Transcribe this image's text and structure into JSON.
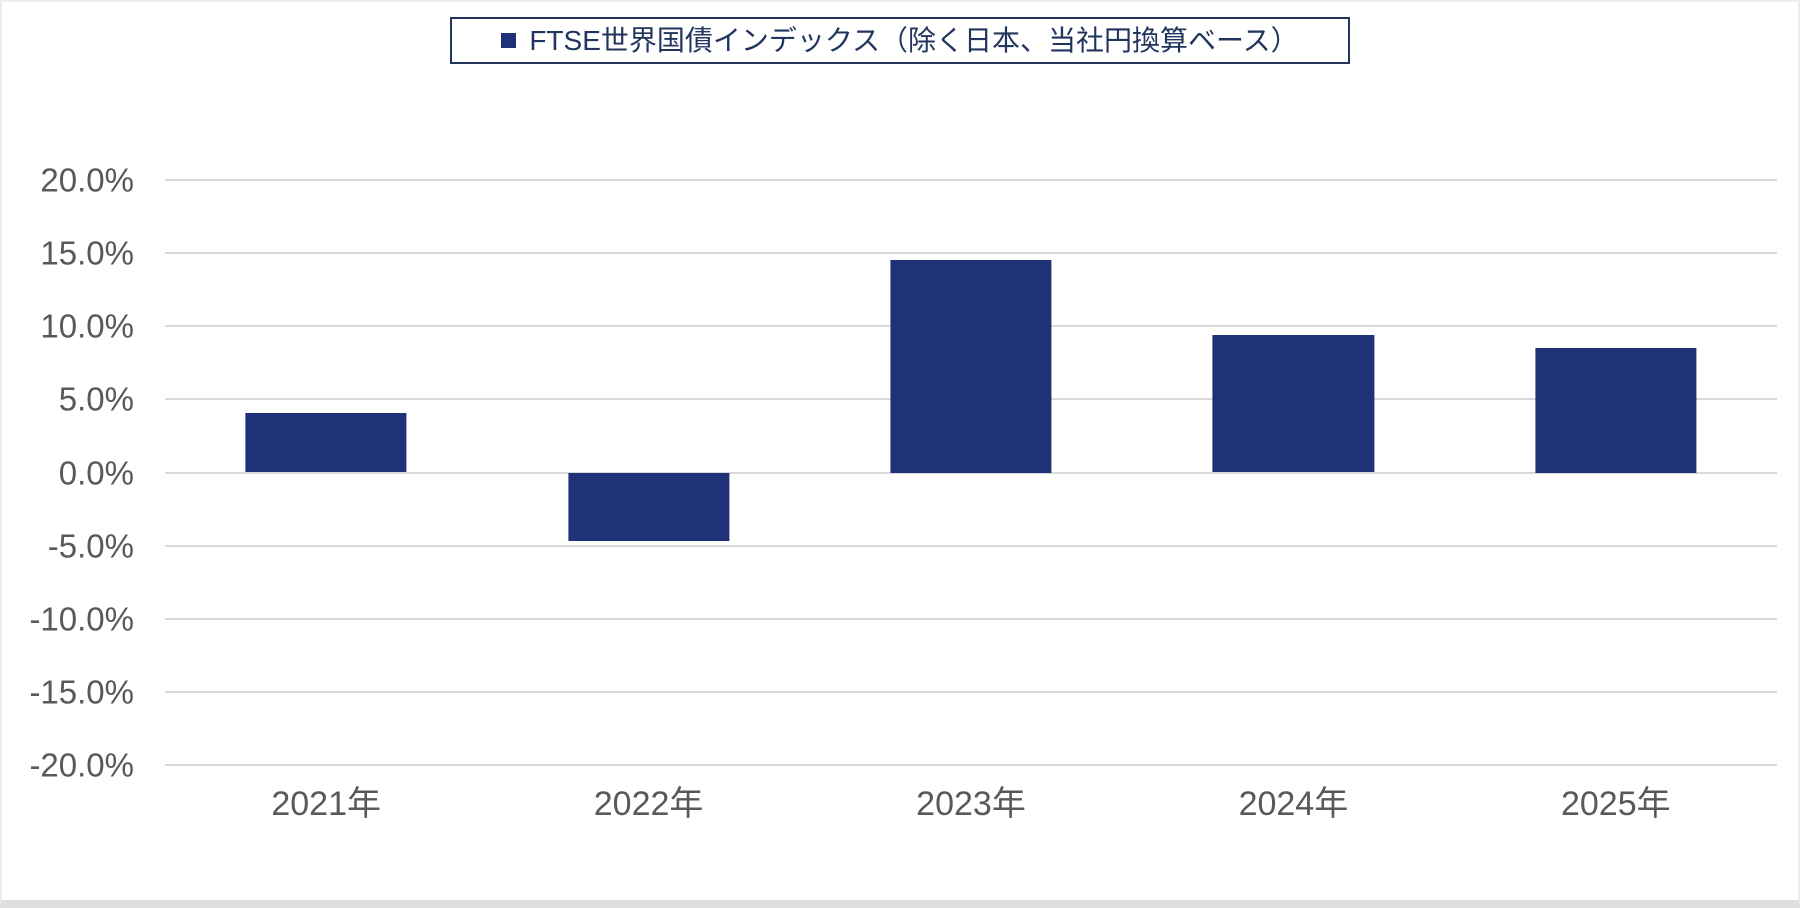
{
  "legend": {
    "label": "FTSE世界国債インデックス（除く日本、当社円換算ベース）",
    "marker_color": "#1f3278",
    "border_color": "#22355f",
    "text_color": "#22355f"
  },
  "chart_data": {
    "type": "bar",
    "title": "",
    "xlabel": "",
    "ylabel": "",
    "categories": [
      "2021年",
      "2022年",
      "2023年",
      "2024年",
      "2025年"
    ],
    "values": [
      4.1,
      -4.7,
      14.5,
      9.4,
      8.5
    ],
    "series_name": "FTSE世界国債インデックス（除く日本、当社円換算ベース）",
    "ylim": [
      -20,
      20
    ],
    "yticks": [
      20,
      15,
      10,
      5,
      0,
      -5,
      -10,
      -15,
      -20
    ],
    "ytick_labels": [
      "20.0%",
      "15.0%",
      "10.0%",
      "5.0%",
      "0.0%",
      "-5.0%",
      "-10.0%",
      "-15.0%",
      "-20.0%"
    ],
    "grid": true,
    "legend_position": "top-center",
    "bar_color": "#1f3278",
    "gridline_color": "#d9d9d9",
    "axis_label_color": "#595959",
    "bar_width_ratio": 0.5
  }
}
